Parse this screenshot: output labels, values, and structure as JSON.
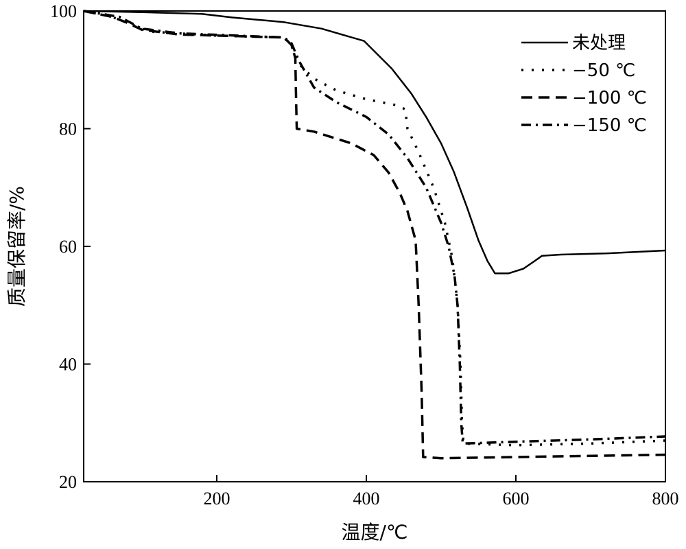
{
  "chart_data": {
    "type": "line",
    "title": "",
    "xlabel": "温度/℃",
    "ylabel": "质量保留率/%",
    "xlim": [
      22,
      800
    ],
    "ylim": [
      20,
      100
    ],
    "xticks": [
      200,
      400,
      600,
      800
    ],
    "yticks": [
      20,
      40,
      60,
      80,
      100
    ],
    "grid": false,
    "legend_position": "top-right",
    "series": [
      {
        "name": "未处理",
        "style": "solid",
        "points": [
          [
            22,
            100
          ],
          [
            100,
            99.8
          ],
          [
            180,
            99.5
          ],
          [
            220,
            98.9
          ],
          [
            290,
            98.1
          ],
          [
            340,
            97
          ],
          [
            397,
            94.9
          ],
          [
            434,
            90.2
          ],
          [
            460,
            86
          ],
          [
            480,
            82
          ],
          [
            500,
            77.5
          ],
          [
            517,
            72.7
          ],
          [
            535,
            66.5
          ],
          [
            550,
            61
          ],
          [
            562,
            57.5
          ],
          [
            572,
            55.4
          ],
          [
            590,
            55.4
          ],
          [
            610,
            56.2
          ],
          [
            625,
            57.5
          ],
          [
            635,
            58.4
          ],
          [
            660,
            58.6
          ],
          [
            720,
            58.8
          ],
          [
            800,
            59.3
          ]
        ]
      },
      {
        "name": "−50 ℃",
        "style": "dotted",
        "points": [
          [
            22,
            100
          ],
          [
            60,
            99
          ],
          [
            90,
            97.5
          ],
          [
            110,
            96.5
          ],
          [
            200,
            95.8
          ],
          [
            290,
            95.5
          ],
          [
            300,
            94
          ],
          [
            310,
            91
          ],
          [
            330,
            88.5
          ],
          [
            360,
            86.5
          ],
          [
            400,
            85
          ],
          [
            440,
            84
          ],
          [
            452,
            83.3
          ],
          [
            455,
            80
          ],
          [
            470,
            76
          ],
          [
            490,
            70
          ],
          [
            505,
            64
          ],
          [
            515,
            58
          ],
          [
            522,
            50
          ],
          [
            526,
            40
          ],
          [
            528,
            30
          ],
          [
            530,
            26.5
          ],
          [
            600,
            26.2
          ],
          [
            700,
            26.5
          ],
          [
            800,
            27
          ]
        ]
      },
      {
        "name": "−100 ℃",
        "style": "dashed",
        "points": [
          [
            22,
            100
          ],
          [
            60,
            99
          ],
          [
            80,
            98
          ],
          [
            100,
            96.8
          ],
          [
            150,
            96
          ],
          [
            290,
            95.5
          ],
          [
            300,
            94.2
          ],
          [
            305,
            92
          ],
          [
            306,
            85
          ],
          [
            307,
            80
          ],
          [
            330,
            79.5
          ],
          [
            380,
            77.5
          ],
          [
            410,
            75.5
          ],
          [
            430,
            72.5
          ],
          [
            445,
            69
          ],
          [
            455,
            66
          ],
          [
            466,
            61
          ],
          [
            470,
            50
          ],
          [
            474,
            35
          ],
          [
            476,
            24.2
          ],
          [
            500,
            24
          ],
          [
            800,
            24.6
          ]
        ]
      },
      {
        "name": "−150 ℃",
        "style": "dashdot",
        "points": [
          [
            22,
            100
          ],
          [
            70,
            99
          ],
          [
            100,
            97
          ],
          [
            150,
            96.2
          ],
          [
            290,
            95.5
          ],
          [
            300,
            94.5
          ],
          [
            310,
            91.5
          ],
          [
            330,
            87
          ],
          [
            360,
            84.5
          ],
          [
            400,
            82
          ],
          [
            430,
            79
          ],
          [
            455,
            75
          ],
          [
            480,
            70
          ],
          [
            500,
            64
          ],
          [
            510,
            60
          ],
          [
            518,
            55
          ],
          [
            522,
            50
          ],
          [
            525,
            40
          ],
          [
            527,
            30
          ],
          [
            529,
            26.5
          ],
          [
            600,
            26.8
          ],
          [
            700,
            27.2
          ],
          [
            800,
            27.7
          ]
        ]
      }
    ]
  }
}
